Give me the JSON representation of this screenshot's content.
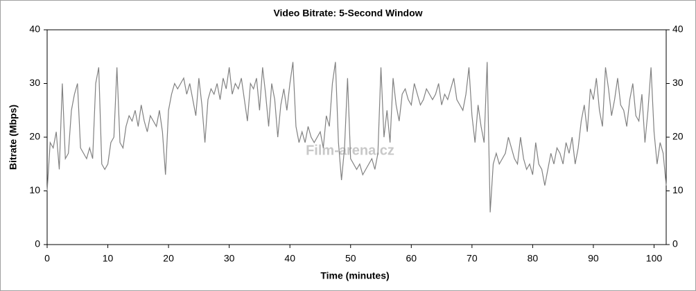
{
  "chart_data": {
    "type": "line",
    "title": "Video Bitrate: 5-Second Window",
    "xlabel": "Time (minutes)",
    "ylabel": "Bitrate (Mbps)",
    "watermark": "Film-arena.cz",
    "x": [
      0,
      0.5,
      1,
      1.5,
      2,
      2.5,
      3,
      3.5,
      4,
      4.5,
      5,
      5.5,
      6,
      6.5,
      7,
      7.5,
      8,
      8.5,
      9,
      9.5,
      10,
      10.5,
      11,
      11.5,
      12,
      12.5,
      13,
      13.5,
      14,
      14.5,
      15,
      15.5,
      16,
      16.5,
      17,
      17.5,
      18,
      18.5,
      19,
      19.5,
      20,
      20.5,
      21,
      21.5,
      22,
      22.5,
      23,
      23.5,
      24,
      24.5,
      25,
      25.5,
      26,
      26.5,
      27,
      27.5,
      28,
      28.5,
      29,
      29.5,
      30,
      30.5,
      31,
      31.5,
      32,
      32.5,
      33,
      33.5,
      34,
      34.5,
      35,
      35.5,
      36,
      36.5,
      37,
      37.5,
      38,
      38.5,
      39,
      39.5,
      40,
      40.5,
      41,
      41.5,
      42,
      42.5,
      43,
      43.5,
      44,
      44.5,
      45,
      45.5,
      46,
      46.5,
      47,
      47.5,
      48,
      48.5,
      49,
      49.5,
      50,
      50.5,
      51,
      51.5,
      52,
      52.5,
      53,
      53.5,
      54,
      54.5,
      55,
      55.5,
      56,
      56.5,
      57,
      57.5,
      58,
      58.5,
      59,
      59.5,
      60,
      60.5,
      61,
      61.5,
      62,
      62.5,
      63,
      63.5,
      64,
      64.5,
      65,
      65.5,
      66,
      66.5,
      67,
      67.5,
      68,
      68.5,
      69,
      69.5,
      70,
      70.5,
      71,
      71.5,
      72,
      72.5,
      73,
      73.5,
      74,
      74.5,
      75,
      75.5,
      76,
      76.5,
      77,
      77.5,
      78,
      78.5,
      79,
      79.5,
      80,
      80.5,
      81,
      81.5,
      82,
      82.5,
      83,
      83.5,
      84,
      84.5,
      85,
      85.5,
      86,
      86.5,
      87,
      87.5,
      88,
      88.5,
      89,
      89.5,
      90,
      90.5,
      91,
      91.5,
      92,
      92.5,
      93,
      93.5,
      94,
      94.5,
      95,
      95.5,
      96,
      96.5,
      97,
      97.5,
      98,
      98.5,
      99,
      99.5,
      100,
      100.5,
      101,
      101.5,
      102
    ],
    "series": [
      {
        "color": "#808080",
        "values": [
          10,
          19,
          18,
          21,
          14,
          30,
          16,
          17,
          25,
          28,
          30,
          18,
          17,
          16,
          18,
          16,
          30,
          33,
          15,
          14,
          15,
          19,
          20,
          33,
          19,
          18,
          22,
          24,
          23,
          25,
          22,
          26,
          23,
          21,
          24,
          23,
          22,
          25,
          21,
          13,
          25,
          28,
          30,
          29,
          30,
          31,
          28,
          30,
          27,
          24,
          31,
          26,
          19,
          27,
          29,
          28,
          30,
          27,
          31,
          29,
          33,
          28,
          30,
          29,
          31,
          27,
          23,
          30,
          29,
          31,
          25,
          33,
          28,
          22,
          30,
          27,
          20,
          26,
          29,
          25,
          30,
          34,
          22,
          19,
          21,
          19,
          22,
          20,
          19,
          20,
          21,
          18,
          24,
          22,
          30,
          34,
          19,
          12,
          18,
          31,
          16,
          15,
          14,
          15,
          13,
          14,
          15,
          16,
          14,
          17,
          33,
          20,
          25,
          19,
          31,
          26,
          23,
          28,
          29,
          27,
          26,
          30,
          28,
          26,
          27,
          29,
          28,
          27,
          28,
          30,
          26,
          28,
          27,
          29,
          31,
          27,
          26,
          25,
          28,
          33,
          24,
          19,
          26,
          22,
          19,
          34,
          6,
          15,
          17,
          15,
          16,
          17,
          20,
          18,
          16,
          15,
          20,
          16,
          14,
          15,
          13,
          19,
          15,
          14,
          11,
          14,
          17,
          15,
          18,
          17,
          15,
          19,
          17,
          20,
          15,
          18,
          23,
          26,
          21,
          29,
          27,
          31,
          25,
          22,
          33,
          29,
          24,
          27,
          31,
          26,
          25,
          22,
          27,
          30,
          24,
          23,
          28,
          19,
          25,
          33,
          21,
          15,
          19,
          17,
          11
        ]
      }
    ],
    "xlim": [
      0,
      102
    ],
    "ylim": [
      0,
      40
    ],
    "xticks": [
      0,
      10,
      20,
      30,
      40,
      50,
      60,
      70,
      80,
      90,
      100
    ],
    "yticks": [
      0,
      10,
      20,
      30,
      40
    ],
    "y2lim": [
      0,
      40
    ],
    "y2ticks": [
      0,
      10,
      20,
      30,
      40
    ]
  }
}
